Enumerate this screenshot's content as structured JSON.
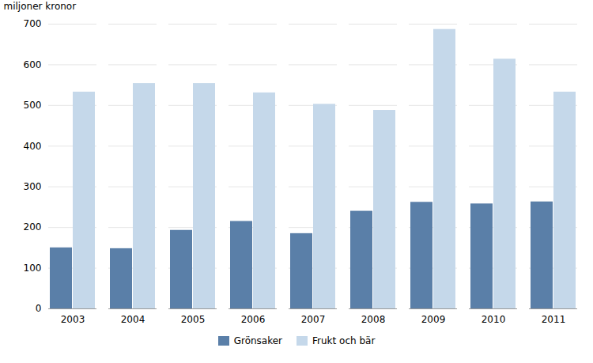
{
  "chart_data": {
    "type": "bar",
    "categories": [
      "2003",
      "2004",
      "2005",
      "2006",
      "2007",
      "2008",
      "2009",
      "2010",
      "2011"
    ],
    "series": [
      {
        "name": "Grönsaker",
        "color": "#5A7FA8",
        "values": [
          150,
          148,
          193,
          215,
          185,
          240,
          262,
          258,
          263
        ]
      },
      {
        "name": "Frukt och bär",
        "color": "#C5D8EA",
        "values": [
          533,
          554,
          554,
          531,
          503,
          488,
          687,
          614,
          533
        ]
      }
    ],
    "ylabel": "miljoner kronor",
    "ylim": [
      0,
      700
    ],
    "yticks": [
      0,
      100,
      200,
      300,
      400,
      500,
      600,
      700
    ],
    "grid": true,
    "legend": "bottom"
  }
}
